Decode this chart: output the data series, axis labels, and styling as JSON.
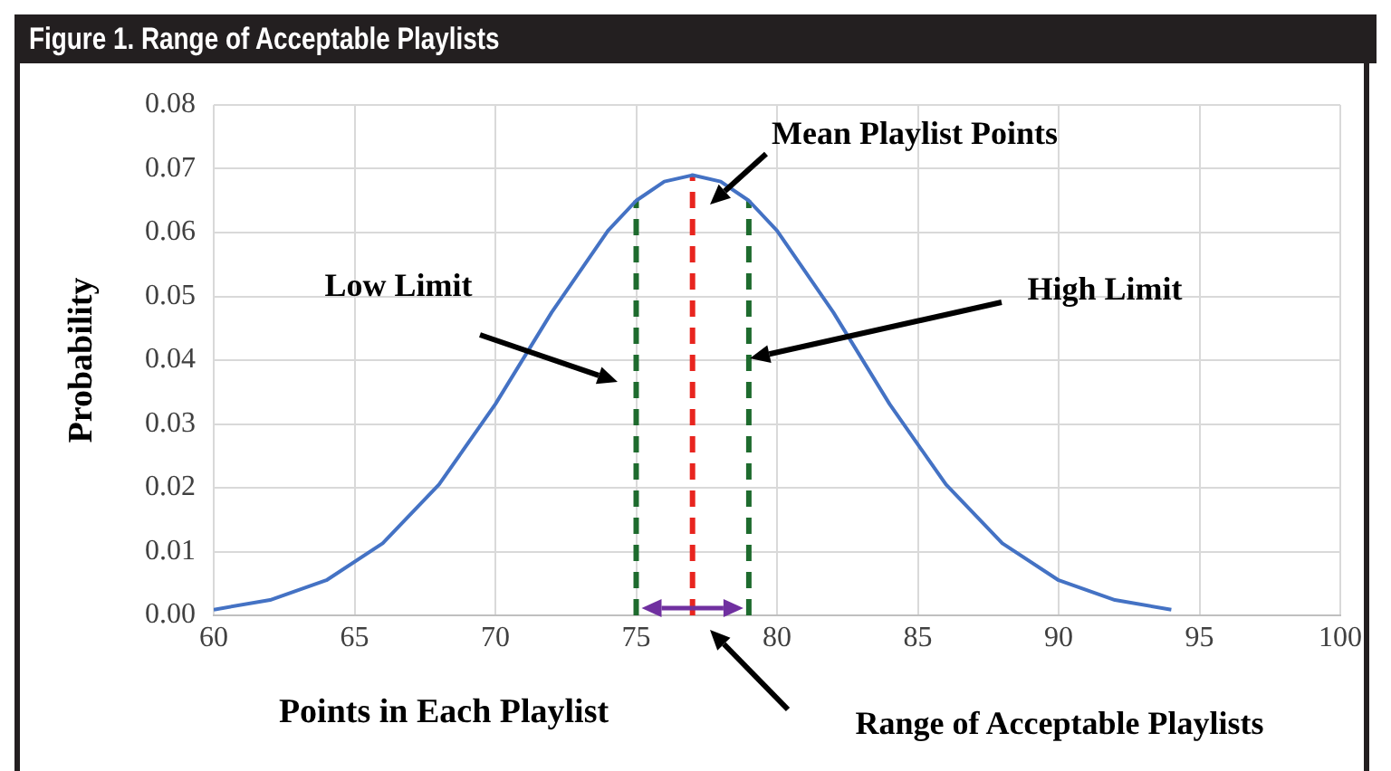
{
  "chart_data": {
    "type": "line",
    "title": "Figure 1. Range of Acceptable Playlists",
    "xlabel": "Points in Each Playlist",
    "ylabel": "Probability",
    "xlim": [
      60,
      100
    ],
    "xticks": [
      60,
      65,
      70,
      75,
      80,
      85,
      90,
      95,
      100
    ],
    "ylim": [
      0,
      0.08
    ],
    "yticks": [
      {
        "value": 0,
        "label": "0.00"
      },
      {
        "value": 0.01,
        "label": "0.01"
      },
      {
        "value": 0.02,
        "label": "0.02"
      },
      {
        "value": 0.03,
        "label": "0.03"
      },
      {
        "value": 0.04,
        "label": "0.04"
      },
      {
        "value": 0.05,
        "label": "0.05"
      },
      {
        "value": 0.06,
        "label": "0.06"
      },
      {
        "value": 0.07,
        "label": "0.07"
      },
      {
        "value": 0.08,
        "label": "0.08"
      }
    ],
    "grid": true,
    "legend": false,
    "marker": "none",
    "series": [
      {
        "color": "#4472c4",
        "line_style": "solid",
        "x": [
          60,
          62,
          64,
          66,
          68,
          70,
          72,
          74,
          75,
          76,
          77,
          78,
          79,
          80,
          82,
          84,
          86,
          88,
          90,
          92,
          94
        ],
        "values": [
          0.0009,
          0.0024,
          0.0055,
          0.0113,
          0.0205,
          0.0331,
          0.0475,
          0.0603,
          0.065,
          0.068,
          0.069,
          0.068,
          0.065,
          0.0603,
          0.0475,
          0.0331,
          0.0205,
          0.0113,
          0.0055,
          0.0024,
          0.0009
        ]
      },
      {
        "color": "#1e6b2e",
        "line_style": "dashed",
        "x": [
          75,
          75
        ],
        "values": [
          0,
          0.065
        ]
      },
      {
        "color": "#e8251f",
        "line_style": "dashed",
        "x": [
          77,
          77
        ],
        "values": [
          0,
          0.069
        ]
      },
      {
        "color": "#1e6b2e",
        "line_style": "dashed",
        "x": [
          79,
          79
        ],
        "values": [
          0,
          0.065
        ]
      }
    ],
    "annotations": [
      "Low Limit",
      "Mean Playlist Points",
      "High Limit",
      "Range of Acceptable Playlists"
    ]
  }
}
